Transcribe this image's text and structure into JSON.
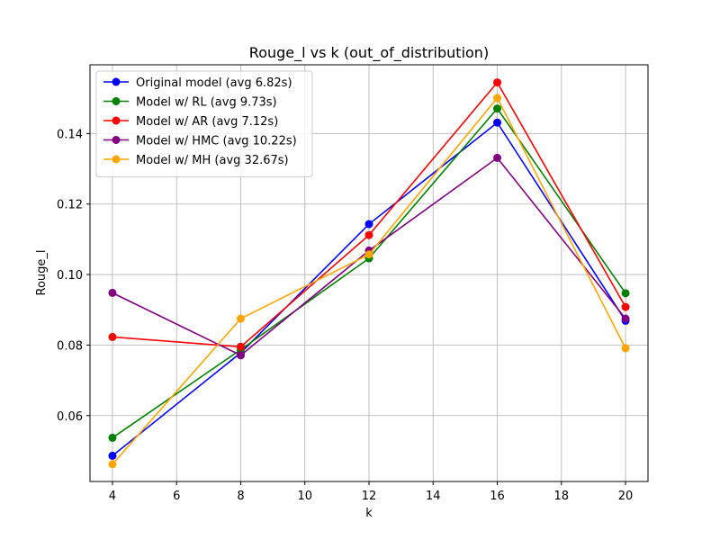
{
  "chart_data": {
    "type": "line",
    "title": "Rouge_l vs k (out_of_distribution)",
    "xlabel": "k",
    "ylabel": "Rouge_l",
    "x": [
      4,
      8,
      12,
      16,
      20
    ],
    "xticks": [
      4,
      6,
      8,
      10,
      12,
      14,
      16,
      18,
      20
    ],
    "yticks": [
      0.06,
      0.08,
      0.1,
      0.12,
      0.14
    ],
    "ytick_labels": [
      "0.06",
      "0.08",
      "0.10",
      "0.12",
      "0.14"
    ],
    "xlim": [
      3.3,
      20.7
    ],
    "ylim": [
      0.0413,
      0.1595
    ],
    "grid": true,
    "legend_position": "top-left",
    "series": [
      {
        "name": "Original model (avg 6.82s)",
        "color": "#0000ff",
        "values": [
          0.0486,
          0.0778,
          0.1143,
          0.1431,
          0.0869
        ]
      },
      {
        "name": "Model w/ RL (avg 9.73s)",
        "color": "#008000",
        "values": [
          0.0537,
          0.0787,
          0.1046,
          0.1471,
          0.0947
        ]
      },
      {
        "name": "Model w/ AR (avg 7.12s)",
        "color": "#ff0000",
        "values": [
          0.0823,
          0.0795,
          0.1112,
          0.1545,
          0.0908
        ]
      },
      {
        "name": "Model w/ HMC (avg 10.22s)",
        "color": "#800080",
        "values": [
          0.0948,
          0.0771,
          0.1068,
          0.1331,
          0.0875
        ]
      },
      {
        "name": "Model w/ MH (avg 32.67s)",
        "color": "#ffa500",
        "values": [
          0.0462,
          0.0875,
          0.1057,
          0.1501,
          0.0791
        ]
      }
    ]
  }
}
